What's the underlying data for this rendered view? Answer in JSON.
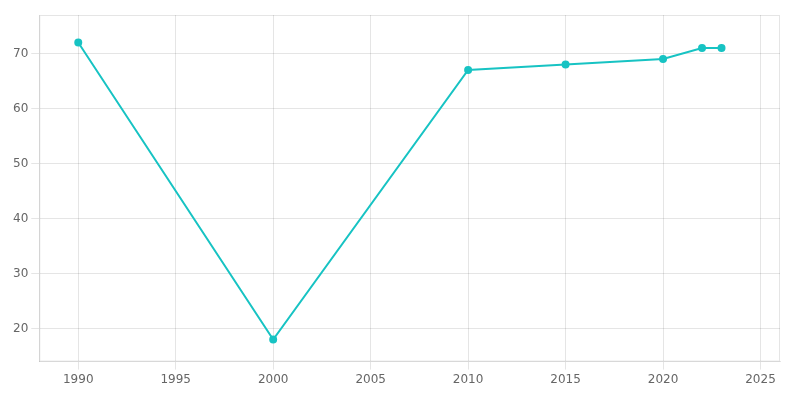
{
  "chart_data": {
    "type": "line",
    "x": [
      1990,
      2000,
      2010,
      2015,
      2020,
      2022,
      2023
    ],
    "values": [
      72,
      18,
      67,
      68,
      69,
      71,
      71
    ],
    "color": "#17C3C3",
    "marker": "circle",
    "xlim": [
      1988,
      2026
    ],
    "xticks": [
      1990,
      1995,
      2000,
      2005,
      2010,
      2015,
      2020,
      2025
    ],
    "ylim": [
      14,
      77
    ],
    "yticks": [
      20,
      30,
      40,
      50,
      60,
      70
    ],
    "grid": true
  }
}
